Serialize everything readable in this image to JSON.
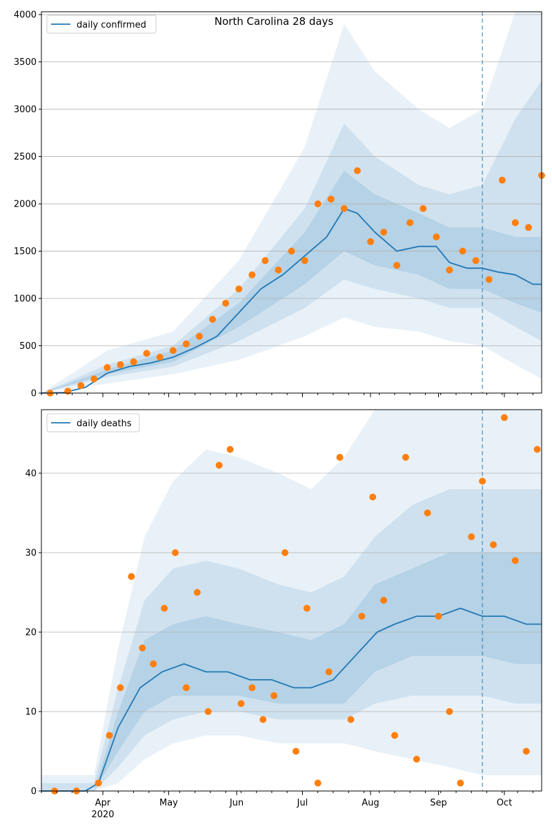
{
  "figure_title": "North Carolina 28 days",
  "colors": {
    "line": "#1f77b4",
    "points": "#ff7f0e",
    "band": "#1f77b4",
    "grid": "#b0b0b0",
    "forecast_line": "#1f77b4"
  },
  "x_axis": {
    "month_labels": [
      "Apr",
      "May",
      "Jun",
      "Jul",
      "Aug",
      "Sep",
      "Oct"
    ],
    "year_label": "2020",
    "start_date": "2020-03-04",
    "end_date": "2020-10-18",
    "forecast_date": "2020-09-21"
  },
  "chart_data": [
    {
      "type": "line",
      "title": "North Carolina 28 days",
      "legend": "daily confirmed",
      "legend_position": "upper left",
      "grid": "horizontal",
      "ylim": [
        0,
        4030
      ],
      "yticks": [
        0,
        500,
        1000,
        1500,
        2000,
        2500,
        3000,
        3500,
        4000
      ],
      "series": [
        {
          "name": "daily confirmed",
          "kind": "line",
          "x": [
            "2020-03-04",
            "2020-03-14",
            "2020-03-24",
            "2020-04-03",
            "2020-04-13",
            "2020-04-23",
            "2020-05-03",
            "2020-05-13",
            "2020-05-23",
            "2020-06-02",
            "2020-06-12",
            "2020-06-22",
            "2020-07-02",
            "2020-07-12",
            "2020-07-20",
            "2020-07-26",
            "2020-08-03",
            "2020-08-13",
            "2020-08-23",
            "2020-08-31",
            "2020-09-06",
            "2020-09-14",
            "2020-09-21",
            "2020-09-28",
            "2020-10-06",
            "2020-10-14",
            "2020-10-18"
          ],
          "values": [
            0,
            5,
            60,
            210,
            280,
            320,
            380,
            480,
            600,
            850,
            1100,
            1250,
            1450,
            1650,
            1950,
            1900,
            1700,
            1500,
            1550,
            1550,
            1380,
            1320,
            1320,
            1280,
            1250,
            1150,
            1150
          ]
        },
        {
          "name": "",
          "kind": "points",
          "x": [
            "2020-03-08",
            "2020-03-16",
            "2020-03-22",
            "2020-03-28",
            "2020-04-03",
            "2020-04-09",
            "2020-04-15",
            "2020-04-21",
            "2020-04-27",
            "2020-05-03",
            "2020-05-09",
            "2020-05-15",
            "2020-05-21",
            "2020-05-27",
            "2020-06-02",
            "2020-06-08",
            "2020-06-14",
            "2020-06-20",
            "2020-06-26",
            "2020-07-02",
            "2020-07-08",
            "2020-07-14",
            "2020-07-20",
            "2020-07-26",
            "2020-08-01",
            "2020-08-07",
            "2020-08-13",
            "2020-08-19",
            "2020-08-25",
            "2020-08-31",
            "2020-09-06",
            "2020-09-12",
            "2020-09-18",
            "2020-09-24",
            "2020-09-30",
            "2020-10-06",
            "2020-10-12",
            "2020-10-18"
          ],
          "values": [
            0,
            20,
            80,
            150,
            270,
            300,
            330,
            420,
            380,
            450,
            520,
            600,
            780,
            950,
            1100,
            1250,
            1400,
            1300,
            1500,
            1400,
            2000,
            2050,
            1950,
            2350,
            1600,
            1700,
            1350,
            1800,
            1950,
            1650,
            1300,
            1500,
            1400,
            1200,
            2250,
            1800,
            1750,
            2300
          ]
        }
      ],
      "bands": [
        {
          "level": "outer",
          "x": [
            "2020-03-04",
            "2020-04-03",
            "2020-05-03",
            "2020-06-02",
            "2020-07-02",
            "2020-07-20",
            "2020-08-03",
            "2020-08-23",
            "2020-09-06",
            "2020-09-21",
            "2020-10-06",
            "2020-10-18"
          ],
          "low": [
            0,
            100,
            200,
            350,
            600,
            800,
            700,
            650,
            550,
            500,
            300,
            150
          ],
          "high": [
            0,
            450,
            650,
            1400,
            2600,
            3900,
            3400,
            3000,
            2800,
            3000,
            4030,
            4030
          ]
        },
        {
          "level": "middle",
          "x": [
            "2020-03-04",
            "2020-04-03",
            "2020-05-03",
            "2020-06-02",
            "2020-07-02",
            "2020-07-20",
            "2020-08-03",
            "2020-08-23",
            "2020-09-06",
            "2020-09-21",
            "2020-10-06",
            "2020-10-18"
          ],
          "low": [
            0,
            170,
            280,
            550,
            900,
            1200,
            1100,
            1000,
            900,
            900,
            700,
            550
          ],
          "high": [
            0,
            300,
            500,
            1100,
            1950,
            2850,
            2500,
            2200,
            2100,
            2200,
            2900,
            3300
          ]
        },
        {
          "level": "inner",
          "x": [
            "2020-03-04",
            "2020-04-03",
            "2020-05-03",
            "2020-06-02",
            "2020-07-02",
            "2020-07-20",
            "2020-08-03",
            "2020-08-23",
            "2020-09-06",
            "2020-09-21",
            "2020-10-06",
            "2020-10-18"
          ],
          "low": [
            0,
            200,
            330,
            700,
            1150,
            1500,
            1350,
            1250,
            1100,
            1100,
            950,
            850
          ],
          "high": [
            0,
            250,
            450,
            950,
            1700,
            2350,
            2100,
            1900,
            1750,
            1750,
            1650,
            1650
          ]
        }
      ]
    },
    {
      "type": "line",
      "legend": "daily deaths",
      "legend_position": "upper left",
      "grid": "horizontal",
      "ylim": [
        0,
        48
      ],
      "yticks": [
        0,
        10,
        20,
        30,
        40
      ],
      "series": [
        {
          "name": "daily deaths",
          "kind": "line",
          "x": [
            "2020-03-04",
            "2020-03-24",
            "2020-03-30",
            "2020-04-08",
            "2020-04-18",
            "2020-04-28",
            "2020-05-08",
            "2020-05-18",
            "2020-05-28",
            "2020-06-07",
            "2020-06-17",
            "2020-06-27",
            "2020-07-05",
            "2020-07-15",
            "2020-07-25",
            "2020-08-04",
            "2020-08-12",
            "2020-08-22",
            "2020-09-01",
            "2020-09-11",
            "2020-09-21",
            "2020-10-01",
            "2020-10-11",
            "2020-10-18"
          ],
          "values": [
            0,
            0,
            1,
            8,
            13,
            15,
            16,
            15,
            15,
            14,
            14,
            13,
            13,
            14,
            17,
            20,
            21,
            22,
            22,
            23,
            22,
            22,
            21,
            21
          ]
        },
        {
          "name": "",
          "kind": "points",
          "x": [
            "2020-03-10",
            "2020-03-20",
            "2020-03-30",
            "2020-04-04",
            "2020-04-09",
            "2020-04-14",
            "2020-04-19",
            "2020-04-24",
            "2020-04-29",
            "2020-05-04",
            "2020-05-09",
            "2020-05-14",
            "2020-05-19",
            "2020-05-24",
            "2020-05-29",
            "2020-06-03",
            "2020-06-08",
            "2020-06-13",
            "2020-06-18",
            "2020-06-23",
            "2020-06-28",
            "2020-07-03",
            "2020-07-08",
            "2020-07-13",
            "2020-07-18",
            "2020-07-23",
            "2020-07-28",
            "2020-08-02",
            "2020-08-07",
            "2020-08-12",
            "2020-08-17",
            "2020-08-22",
            "2020-08-27",
            "2020-09-01",
            "2020-09-06",
            "2020-09-11",
            "2020-09-16",
            "2020-09-21",
            "2020-09-26",
            "2020-10-01",
            "2020-10-06",
            "2020-10-11",
            "2020-10-16"
          ],
          "values": [
            0,
            0,
            1,
            7,
            13,
            27,
            18,
            16,
            23,
            30,
            13,
            25,
            10,
            41,
            43,
            11,
            13,
            9,
            12,
            30,
            5,
            23,
            1,
            15,
            42,
            9,
            22,
            37,
            24,
            7,
            42,
            4,
            35,
            22,
            10,
            1,
            32,
            39,
            31,
            47,
            29,
            5,
            43
          ]
        }
      ],
      "bands": [
        {
          "level": "outer",
          "x": [
            "2020-03-04",
            "2020-03-28",
            "2020-04-08",
            "2020-04-20",
            "2020-05-03",
            "2020-05-18",
            "2020-06-02",
            "2020-06-20",
            "2020-07-05",
            "2020-07-20",
            "2020-08-03",
            "2020-08-20",
            "2020-09-06",
            "2020-09-21",
            "2020-10-06",
            "2020-10-18"
          ],
          "low": [
            0,
            0,
            1,
            4,
            6,
            7,
            7,
            6,
            6,
            6,
            5,
            4,
            3,
            2,
            2,
            2
          ],
          "high": [
            2,
            2,
            18,
            32,
            39,
            43,
            42,
            40,
            38,
            42,
            48,
            48,
            48,
            48,
            48,
            48
          ]
        },
        {
          "level": "middle",
          "x": [
            "2020-03-04",
            "2020-03-28",
            "2020-04-08",
            "2020-04-20",
            "2020-05-03",
            "2020-05-18",
            "2020-06-02",
            "2020-06-20",
            "2020-07-05",
            "2020-07-20",
            "2020-08-03",
            "2020-08-20",
            "2020-09-06",
            "2020-09-21",
            "2020-10-06",
            "2020-10-18"
          ],
          "low": [
            0,
            0,
            3,
            7,
            9,
            10,
            10,
            9,
            9,
            9,
            11,
            12,
            12,
            12,
            11,
            11
          ],
          "high": [
            1,
            1,
            13,
            24,
            28,
            29,
            28,
            26,
            25,
            27,
            32,
            36,
            38,
            38,
            38,
            38
          ]
        },
        {
          "level": "inner",
          "x": [
            "2020-03-04",
            "2020-03-28",
            "2020-04-08",
            "2020-04-20",
            "2020-05-03",
            "2020-05-18",
            "2020-06-02",
            "2020-06-20",
            "2020-07-05",
            "2020-07-20",
            "2020-08-03",
            "2020-08-20",
            "2020-09-06",
            "2020-09-21",
            "2020-10-06",
            "2020-10-18"
          ],
          "low": [
            0,
            0,
            5,
            10,
            12,
            12,
            12,
            11,
            11,
            11,
            15,
            17,
            17,
            17,
            16,
            16
          ],
          "high": [
            0,
            0,
            10,
            19,
            21,
            22,
            21,
            20,
            19,
            21,
            26,
            28,
            30,
            30,
            30,
            30
          ]
        }
      ]
    }
  ]
}
